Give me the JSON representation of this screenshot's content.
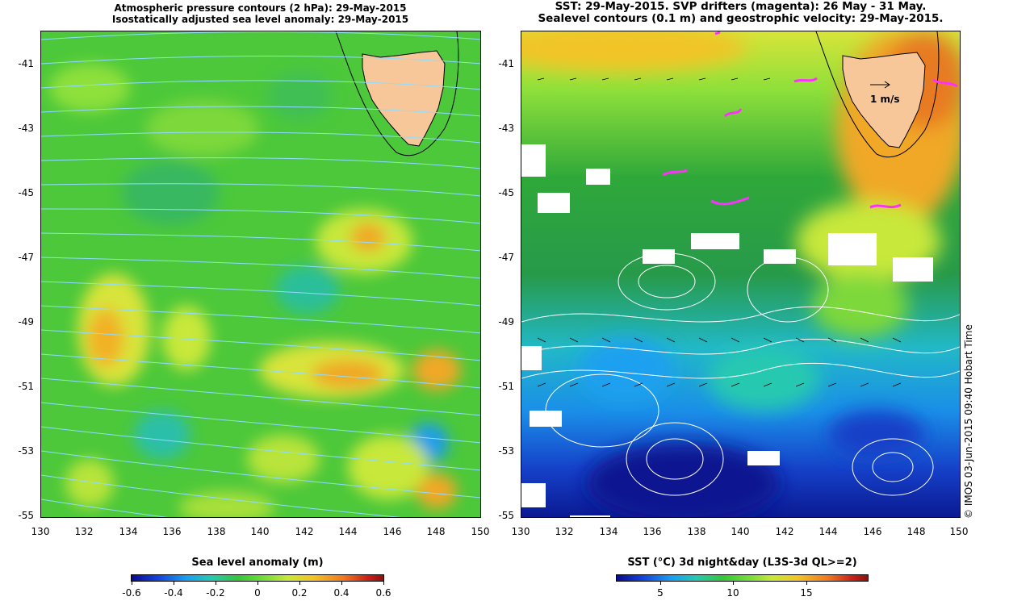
{
  "left_title": {
    "line1": "Atmospheric pressure contours (2 hPa): 29-May-2015",
    "line2": "Isostatically adjusted sea level anomaly: 29-May-2015"
  },
  "right_title": {
    "line1": "SST: 29-May-2015. SVP drifters (magenta): 26 May - 31 May.",
    "line2": "Sealevel contours (0.1 m) and geostrophic velocity: 29-May-2015."
  },
  "y_ticks": [
    "-41",
    "-43",
    "-45",
    "-47",
    "-49",
    "-51",
    "-53",
    "-55"
  ],
  "x_ticks": [
    "130",
    "132",
    "134",
    "136",
    "138",
    "140",
    "142",
    "144",
    "146",
    "148",
    "150"
  ],
  "left_colorbar": {
    "title": "Sea level anomaly (m)",
    "labels": [
      "-0.6",
      "-0.4",
      "-0.2",
      "0",
      "0.2",
      "0.4",
      "0.6"
    ]
  },
  "right_colorbar": {
    "title": "SST (°C) 3d night&day (L3S-3d QL>=2)",
    "labels": [
      "5",
      "10",
      "15"
    ]
  },
  "velocity_scale_label": "1 m/s",
  "credit": "© IMOS 03-Jun-2015 09:40 Hobart Time",
  "colors": {
    "land": "#f7c79a",
    "drifters": "#ff30ff",
    "pressure_contours": "#7fd8ff",
    "sealevel_contours": "#ffffff"
  }
}
